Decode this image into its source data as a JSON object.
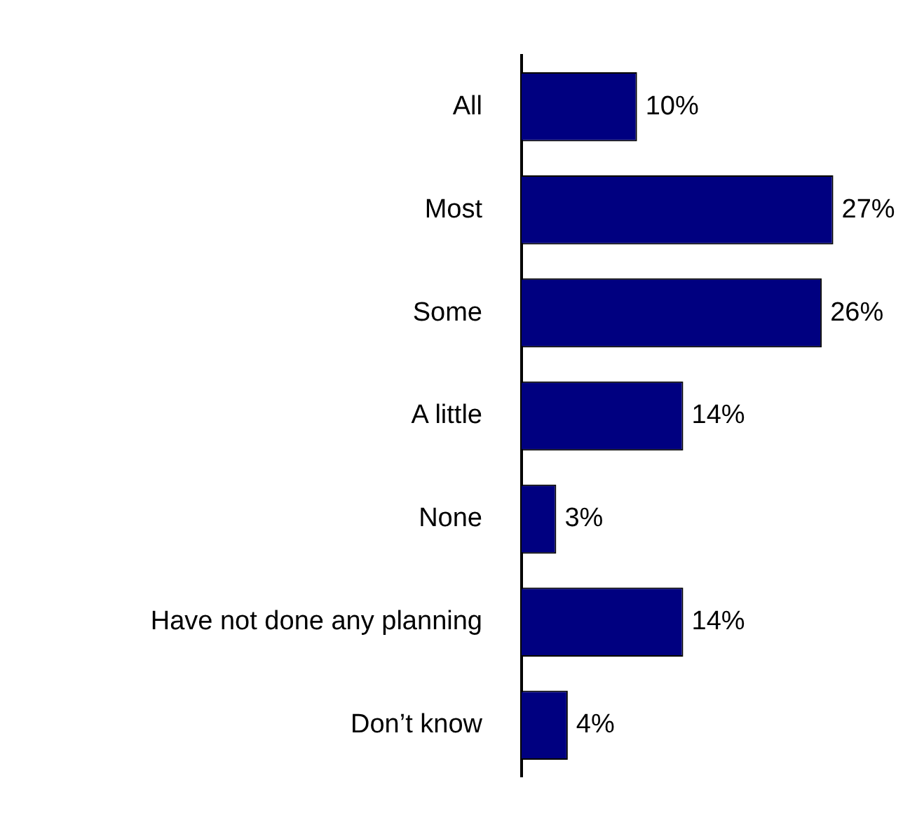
{
  "chart_data": {
    "type": "bar",
    "orientation": "horizontal",
    "categories": [
      "All",
      "Most",
      "Some",
      "A little",
      "None",
      "Have not done any planning",
      "Don’t know"
    ],
    "values": [
      10,
      27,
      26,
      14,
      3,
      14,
      4
    ],
    "value_labels": [
      "10%",
      "27%",
      "26%",
      "14%",
      "3%",
      "14%",
      "4%"
    ],
    "color": "#000080",
    "tick_labels": "y"
  }
}
